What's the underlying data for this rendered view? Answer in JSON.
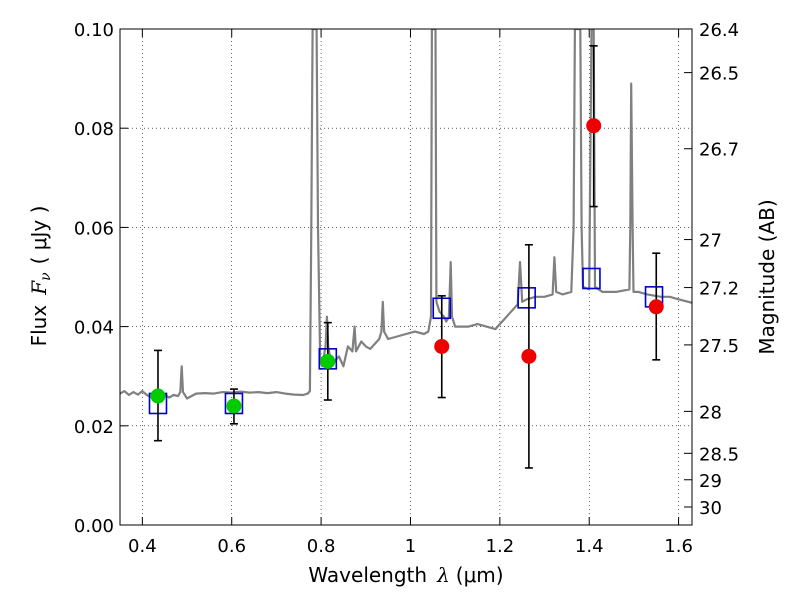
{
  "chart_data": {
    "type": "scatter",
    "xlabel": {
      "prefix": "Wavelength",
      "symbol": "λ",
      "unit": "(μm)"
    },
    "ylabel": {
      "prefix": "Flux",
      "symbol": "F",
      "sub": "ν",
      "unit": "( μJy )"
    },
    "y2label": "Magnitude (AB)",
    "xlim": [
      0.35,
      1.63
    ],
    "ylim": [
      0.0,
      0.1
    ],
    "grid": true,
    "x_ticks": [
      {
        "v": 0.4,
        "label": "0.4"
      },
      {
        "v": 0.6,
        "label": "0.6"
      },
      {
        "v": 0.8,
        "label": "0.8"
      },
      {
        "v": 1.0,
        "label": "1"
      },
      {
        "v": 1.2,
        "label": "1.2"
      },
      {
        "v": 1.4,
        "label": "1.4"
      },
      {
        "v": 1.6,
        "label": "1.6"
      }
    ],
    "y_ticks": [
      {
        "v": 0.0,
        "label": "0.00"
      },
      {
        "v": 0.02,
        "label": "0.02"
      },
      {
        "v": 0.04,
        "label": "0.04"
      },
      {
        "v": 0.06,
        "label": "0.06"
      },
      {
        "v": 0.08,
        "label": "0.08"
      },
      {
        "v": 0.1,
        "label": "0.10"
      }
    ],
    "y2_ticks": [
      {
        "mag": 26.4,
        "label": "26.4"
      },
      {
        "mag": 26.5,
        "label": "26.5"
      },
      {
        "mag": 26.7,
        "label": "26.7"
      },
      {
        "mag": 27.0,
        "label": "27"
      },
      {
        "mag": 27.2,
        "label": "27.2"
      },
      {
        "mag": 27.5,
        "label": "27.5"
      },
      {
        "mag": 28.0,
        "label": "28"
      },
      {
        "mag": 28.5,
        "label": "28.5"
      },
      {
        "mag": 29.0,
        "label": "29"
      },
      {
        "mag": 30.0,
        "label": "30"
      }
    ],
    "series": [
      {
        "kind": "spectrum",
        "color": "#808080",
        "points": [
          [
            0.35,
            0.0265
          ],
          [
            0.36,
            0.027
          ],
          [
            0.37,
            0.0262
          ],
          [
            0.38,
            0.0268
          ],
          [
            0.39,
            0.0263
          ],
          [
            0.4,
            0.027
          ],
          [
            0.41,
            0.0262
          ],
          [
            0.42,
            0.0258
          ],
          [
            0.43,
            0.0262
          ],
          [
            0.44,
            0.0268
          ],
          [
            0.45,
            0.0262
          ],
          [
            0.46,
            0.0257
          ],
          [
            0.47,
            0.0262
          ],
          [
            0.48,
            0.026
          ],
          [
            0.485,
            0.0268
          ],
          [
            0.488,
            0.032
          ],
          [
            0.491,
            0.0268
          ],
          [
            0.5,
            0.0255
          ],
          [
            0.52,
            0.0265
          ],
          [
            0.54,
            0.0266
          ],
          [
            0.56,
            0.0265
          ],
          [
            0.58,
            0.0268
          ],
          [
            0.6,
            0.0267
          ],
          [
            0.62,
            0.0269
          ],
          [
            0.64,
            0.0267
          ],
          [
            0.66,
            0.0268
          ],
          [
            0.68,
            0.0266
          ],
          [
            0.7,
            0.0268
          ],
          [
            0.72,
            0.0265
          ],
          [
            0.74,
            0.0263
          ],
          [
            0.76,
            0.0262
          ],
          [
            0.77,
            0.0265
          ],
          [
            0.775,
            0.027
          ],
          [
            0.778,
            0.06
          ],
          [
            0.781,
            0.1
          ],
          [
            0.79,
            0.1
          ],
          [
            0.793,
            0.06
          ],
          [
            0.798,
            0.033
          ],
          [
            0.802,
            0.032
          ],
          [
            0.81,
            0.036
          ],
          [
            0.813,
            0.042
          ],
          [
            0.816,
            0.036
          ],
          [
            0.82,
            0.034
          ],
          [
            0.83,
            0.033
          ],
          [
            0.84,
            0.034
          ],
          [
            0.85,
            0.032
          ],
          [
            0.86,
            0.036
          ],
          [
            0.87,
            0.035
          ],
          [
            0.875,
            0.04
          ],
          [
            0.878,
            0.035
          ],
          [
            0.89,
            0.037
          ],
          [
            0.9,
            0.036
          ],
          [
            0.91,
            0.0355
          ],
          [
            0.92,
            0.0365
          ],
          [
            0.93,
            0.0375
          ],
          [
            0.935,
            0.039
          ],
          [
            0.938,
            0.045
          ],
          [
            0.941,
            0.039
          ],
          [
            0.95,
            0.0375
          ],
          [
            0.97,
            0.038
          ],
          [
            0.99,
            0.0385
          ],
          [
            1.01,
            0.039
          ],
          [
            1.03,
            0.0385
          ],
          [
            1.04,
            0.039
          ],
          [
            1.046,
            0.042
          ],
          [
            1.048,
            0.1
          ],
          [
            1.056,
            0.1
          ],
          [
            1.058,
            0.045
          ],
          [
            1.065,
            0.043
          ],
          [
            1.075,
            0.042
          ],
          [
            1.08,
            0.041
          ],
          [
            1.086,
            0.042
          ],
          [
            1.09,
            0.053
          ],
          [
            1.093,
            0.042
          ],
          [
            1.1,
            0.04
          ],
          [
            1.13,
            0.04
          ],
          [
            1.15,
            0.0405
          ],
          [
            1.17,
            0.04
          ],
          [
            1.19,
            0.0395
          ],
          [
            1.2,
            0.0405
          ],
          [
            1.21,
            0.0415
          ],
          [
            1.22,
            0.0425
          ],
          [
            1.23,
            0.0435
          ],
          [
            1.24,
            0.0445
          ],
          [
            1.245,
            0.053
          ],
          [
            1.25,
            0.045
          ],
          [
            1.26,
            0.0455
          ],
          [
            1.28,
            0.046
          ],
          [
            1.3,
            0.046
          ],
          [
            1.318,
            0.0465
          ],
          [
            1.322,
            0.054
          ],
          [
            1.326,
            0.047
          ],
          [
            1.34,
            0.0465
          ],
          [
            1.36,
            0.047
          ],
          [
            1.365,
            0.06
          ],
          [
            1.368,
            0.1
          ],
          [
            1.38,
            0.1
          ],
          [
            1.383,
            0.06
          ],
          [
            1.386,
            0.048
          ],
          [
            1.4,
            0.0475
          ],
          [
            1.405,
            0.1
          ],
          [
            1.41,
            0.1
          ],
          [
            1.413,
            0.048
          ],
          [
            1.43,
            0.047
          ],
          [
            1.46,
            0.047
          ],
          [
            1.49,
            0.0475
          ],
          [
            1.492,
            0.06
          ],
          [
            1.494,
            0.089
          ],
          [
            1.497,
            0.06
          ],
          [
            1.499,
            0.047
          ],
          [
            1.51,
            0.047
          ],
          [
            1.53,
            0.0465
          ],
          [
            1.56,
            0.046
          ],
          [
            1.58,
            0.046
          ],
          [
            1.6,
            0.0455
          ],
          [
            1.63,
            0.0448
          ]
        ]
      },
      {
        "kind": "squares",
        "color": "#0000cc",
        "points": [
          [
            0.435,
            0.0245
          ],
          [
            0.605,
            0.0245
          ],
          [
            0.815,
            0.0335
          ],
          [
            1.07,
            0.0437
          ],
          [
            1.26,
            0.0458
          ],
          [
            1.405,
            0.0497
          ],
          [
            1.545,
            0.046
          ]
        ]
      },
      {
        "kind": "errorbars",
        "color": "#000000",
        "points": [
          {
            "x": 0.435,
            "y": 0.026,
            "lo": 0.017,
            "hi": 0.0352
          },
          {
            "x": 0.605,
            "y": 0.024,
            "lo": 0.0204,
            "hi": 0.0274
          },
          {
            "x": 0.815,
            "y": 0.033,
            "lo": 0.0252,
            "hi": 0.0408
          },
          {
            "x": 1.07,
            "y": 0.036,
            "lo": 0.0257,
            "hi": 0.0462
          },
          {
            "x": 1.265,
            "y": 0.034,
            "lo": 0.0115,
            "hi": 0.0565
          },
          {
            "x": 1.41,
            "y": 0.0805,
            "lo": 0.0642,
            "hi": 0.0966
          },
          {
            "x": 1.55,
            "y": 0.044,
            "lo": 0.0333,
            "hi": 0.0548
          }
        ]
      },
      {
        "kind": "circles",
        "color": "#00cc00",
        "points": [
          [
            0.435,
            0.026
          ],
          [
            0.605,
            0.024
          ],
          [
            0.815,
            0.033
          ]
        ]
      },
      {
        "kind": "circles",
        "color": "#ee0000",
        "points": [
          [
            1.07,
            0.036
          ],
          [
            1.265,
            0.034
          ],
          [
            1.41,
            0.0805
          ],
          [
            1.55,
            0.044
          ]
        ]
      }
    ]
  }
}
